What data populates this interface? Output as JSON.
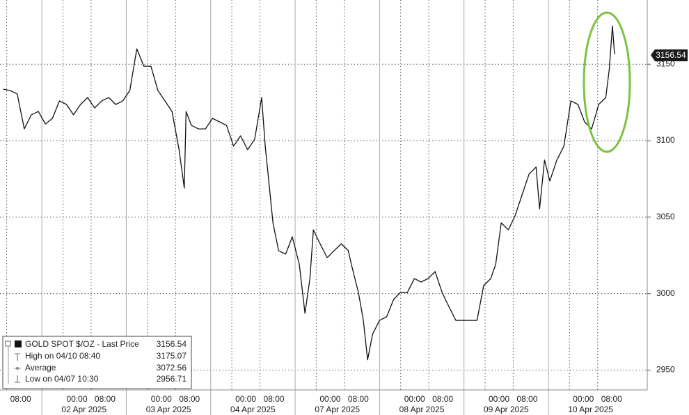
{
  "chart_data": {
    "type": "line",
    "series": [
      {
        "name": "GOLD SPOT $/OZ - Last Price",
        "color": "#111111",
        "x": [
          7,
          9,
          11,
          13,
          15,
          17,
          19,
          21,
          23,
          25,
          27,
          29,
          31,
          33,
          35,
          37,
          39,
          41,
          43,
          45,
          47,
          49,
          51,
          53,
          55,
          57,
          58.5,
          59,
          60.5,
          62.5,
          64.5,
          66.5,
          68.5,
          70.5,
          72.5,
          74.5,
          76.5,
          78.5,
          80.5,
          81.5,
          82.5,
          83.7,
          85.3,
          87.3,
          89.2,
          91.2,
          92.8,
          94.2,
          95.2,
          97.1,
          99.1,
          101.1,
          103.1,
          105.1,
          106,
          108,
          109.4,
          110.6,
          112,
          114,
          116,
          118,
          119.9,
          121.9,
          123.9,
          125.8,
          127.8,
          129.8,
          131.8,
          133.7,
          135.7,
          137.7,
          139.7,
          141.7,
          143.6,
          145.6,
          147,
          148.6,
          150.6,
          152.5,
          154.5,
          156.5,
          158.5,
          159.5,
          160.9,
          162.4,
          164.4,
          166.4,
          168.4,
          170.4,
          172.3,
          174.3,
          176.3,
          178.3,
          179.3,
          180.2,
          180.8
        ],
        "values": [
          3133.7,
          3132.8,
          3130.5,
          3107.7,
          3116.9,
          3119.1,
          3110.9,
          3114.6,
          3126,
          3123.7,
          3116.9,
          3123.7,
          3128.2,
          3121.4,
          3126,
          3128.2,
          3123.7,
          3126,
          3132.8,
          3160.1,
          3148.7,
          3148.7,
          3132.8,
          3126,
          3119.1,
          3094.1,
          3069,
          3119.1,
          3110,
          3107.7,
          3107.7,
          3114.6,
          3112.3,
          3110,
          3096.4,
          3103.2,
          3094.1,
          3100.9,
          3128.2,
          3096.4,
          3073.6,
          3046.3,
          3028.1,
          3025.8,
          3037.2,
          3019,
          2987.1,
          3009.8,
          3041.7,
          3032.6,
          3023.5,
          3028.1,
          3032.6,
          3028.1,
          3019,
          3000.7,
          2982.5,
          2956.71,
          2973.4,
          2982.5,
          2984.8,
          2996.2,
          3000.7,
          3000.7,
          3009.8,
          3007.6,
          3009.8,
          3014.4,
          3000.7,
          2991.6,
          2982.5,
          2982.5,
          2982.5,
          2982.5,
          3005.3,
          3009.8,
          3019,
          3046.3,
          3041.7,
          3050.8,
          3064.5,
          3078.2,
          3082.7,
          3055.4,
          3087.3,
          3073.6,
          3087.3,
          3096.4,
          3126,
          3123.7,
          3112.3,
          3107.7,
          3123.7,
          3128.2,
          3146.5,
          3175.07,
          3156.54
        ]
      }
    ],
    "legend": [
      {
        "label": "GOLD SPOT $/OZ - Last Price",
        "value": 3156.54
      },
      {
        "label": "High on 04/10 08:40",
        "value": 3175.07
      },
      {
        "label": "Average",
        "value": 3072.56
      },
      {
        "label": "Low on 04/07 10:30",
        "value": 2956.71
      }
    ],
    "xlim": [
      6.1,
      190.1
    ],
    "xticks": [
      {
        "value": 8,
        "label": "08:00"
      },
      {
        "value": 24,
        "label": "00:00"
      },
      {
        "value": 32,
        "label": "08:00"
      },
      {
        "value": 48,
        "label": "00:00"
      },
      {
        "value": 56,
        "label": "08:00"
      },
      {
        "value": 72,
        "label": "00:00"
      },
      {
        "value": 80,
        "label": "08:00"
      },
      {
        "value": 96,
        "label": "00:00"
      },
      {
        "value": 104,
        "label": "08:00"
      },
      {
        "value": 120,
        "label": "00:00"
      },
      {
        "value": 128,
        "label": "08:00"
      },
      {
        "value": 144,
        "label": "00:00"
      },
      {
        "value": 152,
        "label": "08:00"
      },
      {
        "value": 168,
        "label": "00:00"
      },
      {
        "value": 176,
        "label": "08:00"
      }
    ],
    "xdates": [
      {
        "value": 30,
        "label": "02 Apr 2025"
      },
      {
        "value": 54,
        "label": "03 Apr 2025"
      },
      {
        "value": 78,
        "label": "04 Apr 2025"
      },
      {
        "value": 102,
        "label": "07 Apr 2025"
      },
      {
        "value": 126,
        "label": "08 Apr 2025"
      },
      {
        "value": 150,
        "label": "09 Apr 2025"
      },
      {
        "value": 174,
        "label": "10 Apr 2025"
      }
    ],
    "ylim": [
      2937,
      3192
    ],
    "yticks": [
      2950,
      3000,
      3050,
      3100,
      3150
    ],
    "grid": true
  }
}
